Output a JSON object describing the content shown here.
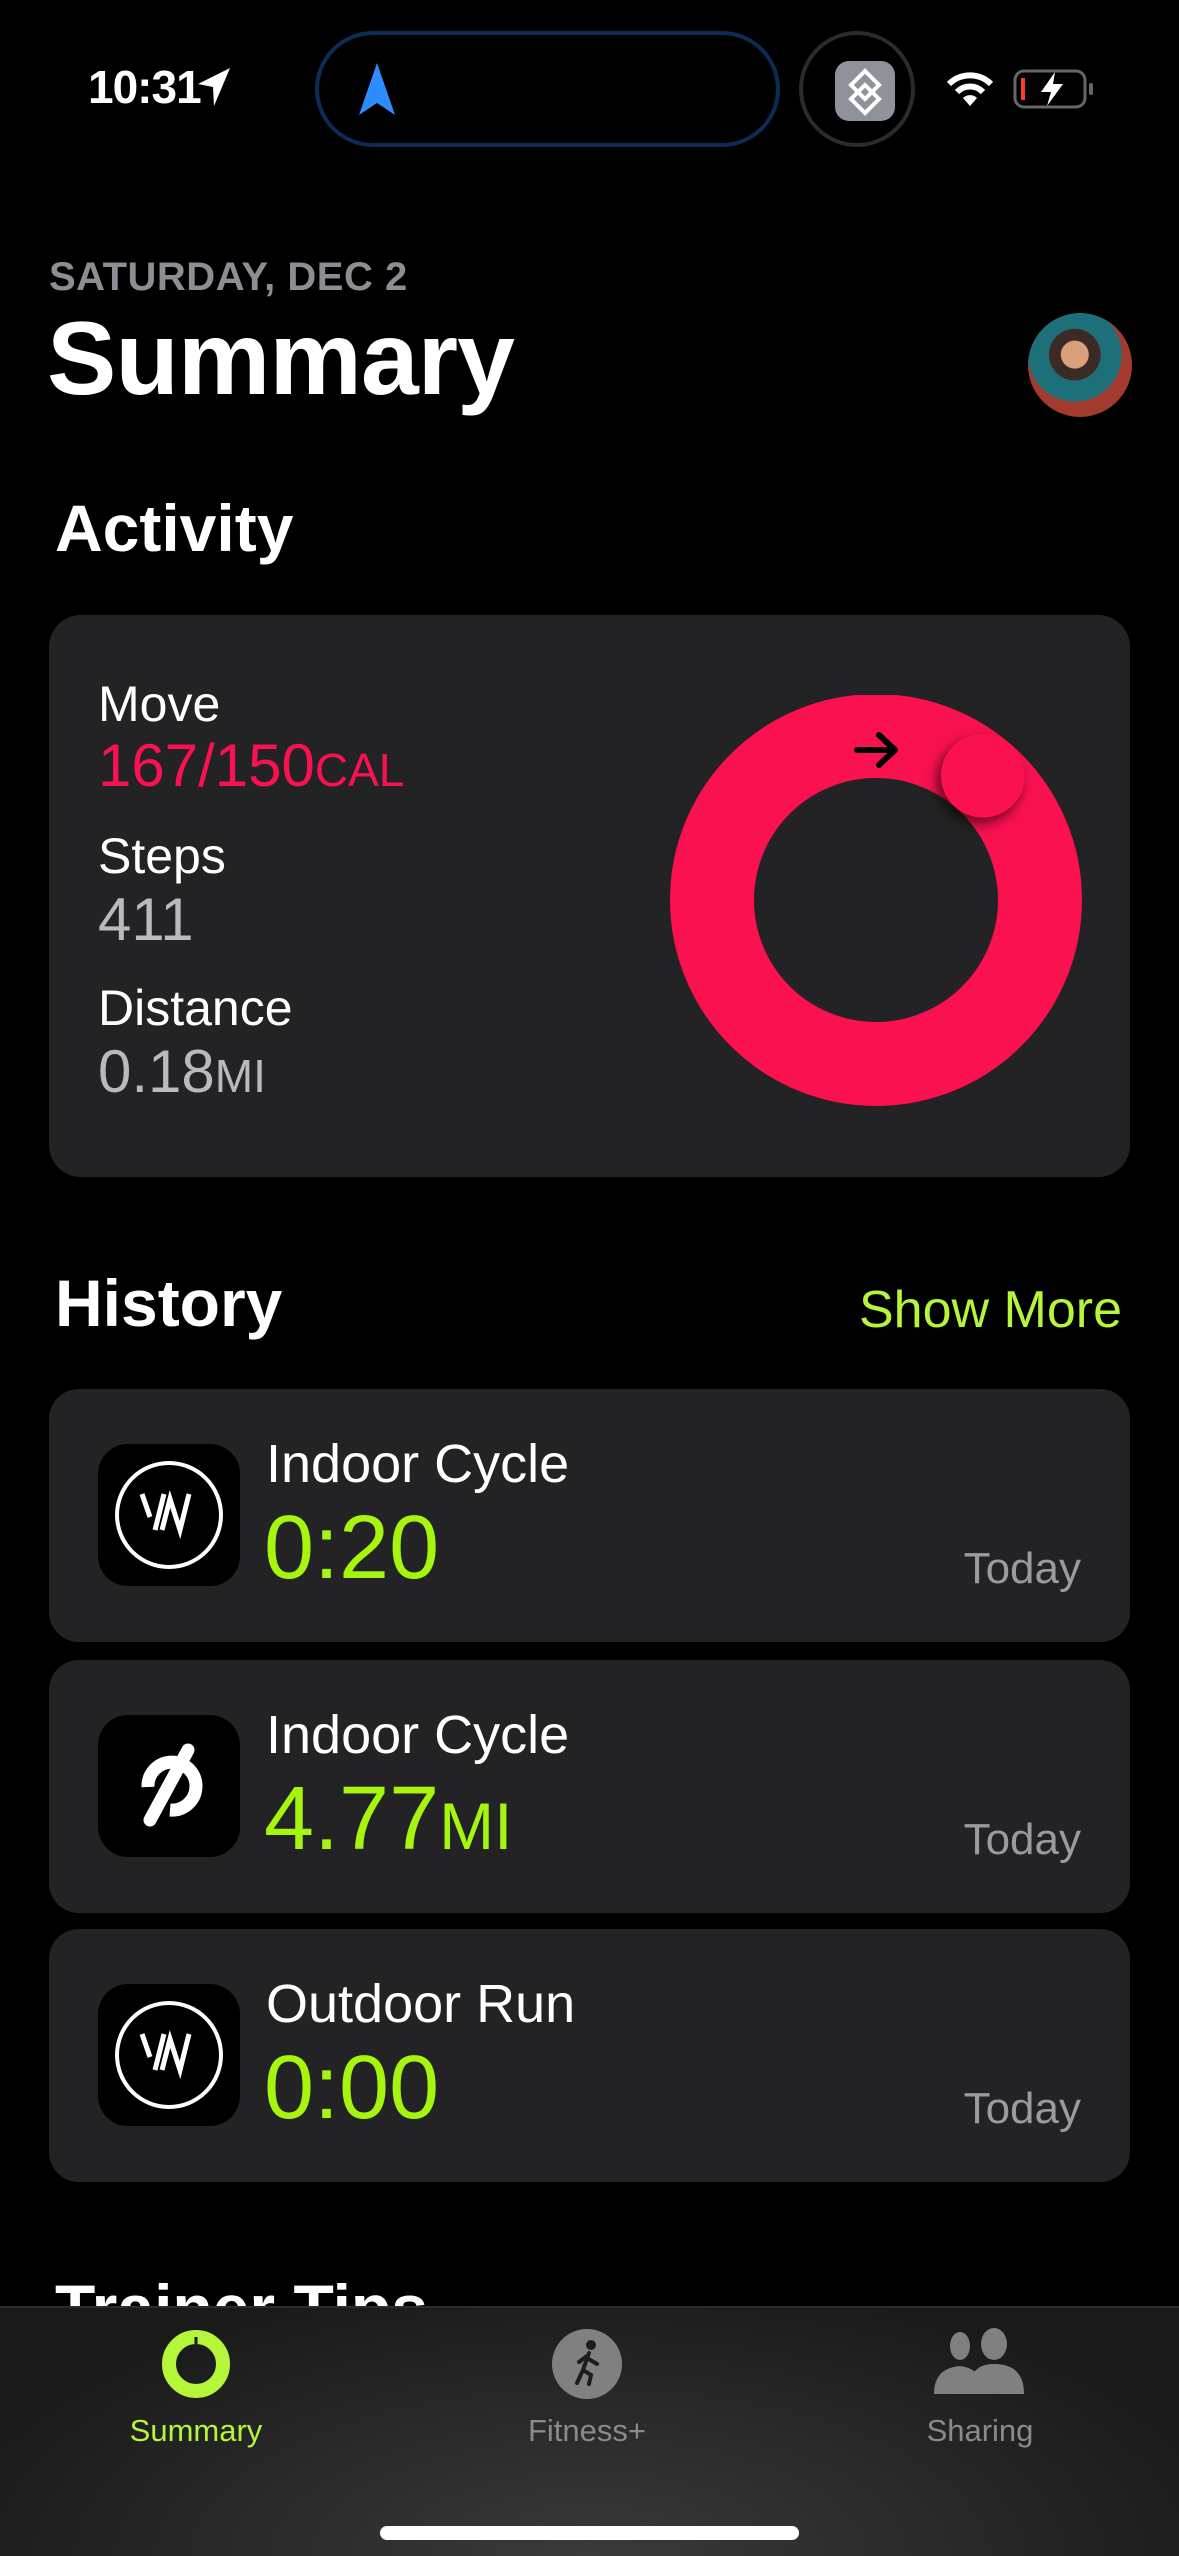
{
  "status_bar": {
    "time": "10:31",
    "location_icon": "location-arrow-icon",
    "wifi_icon": "wifi-icon",
    "battery_icon": "battery-charging-icon",
    "battery_level_low": true
  },
  "header": {
    "date": "SATURDAY, DEC 2",
    "title": "Summary"
  },
  "activity": {
    "heading": "Activity",
    "move": {
      "label": "Move",
      "value": "167/150",
      "unit": "CAL",
      "progress": 1.113
    },
    "steps": {
      "label": "Steps",
      "value": "411"
    },
    "distance": {
      "label": "Distance",
      "value": "0.18",
      "unit": "MI"
    }
  },
  "history": {
    "heading": "History",
    "show_more": "Show More",
    "items": [
      {
        "app_icon": "whoop-icon",
        "title": "Indoor Cycle",
        "value": "0:20",
        "unit": "",
        "date": "Today"
      },
      {
        "app_icon": "peloton-icon",
        "title": "Indoor Cycle",
        "value": "4.77",
        "unit": "MI",
        "date": "Today"
      },
      {
        "app_icon": "whoop-icon",
        "title": "Outdoor Run",
        "value": "0:00",
        "unit": "",
        "date": "Today"
      }
    ]
  },
  "trainer_tips": {
    "heading": "Trainer Tips"
  },
  "tabs": [
    {
      "label": "Summary",
      "icon": "activity-ring-icon",
      "active": true
    },
    {
      "label": "Fitness+",
      "icon": "runner-icon",
      "active": false
    },
    {
      "label": "Sharing",
      "icon": "people-icon",
      "active": false
    }
  ],
  "colors": {
    "move": "#fa1150",
    "accent": "#a6f50f",
    "card": "#232325"
  }
}
